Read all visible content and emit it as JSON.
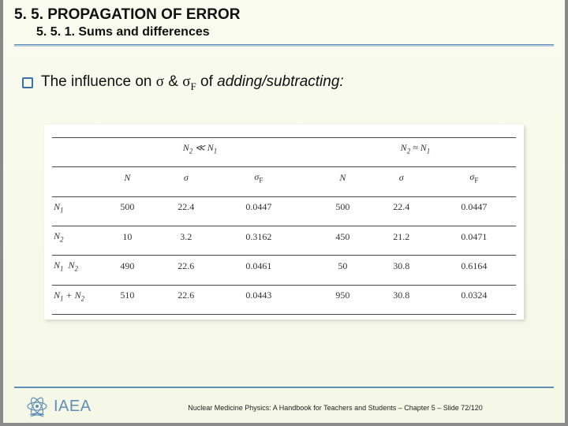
{
  "header": {
    "title1": "5. 5. PROPAGATION OF ERROR",
    "title2": "5. 5. 1. Sums and differences"
  },
  "bullet": {
    "pre": "The influence on ",
    "sigma1": "σ",
    "amp": " & ",
    "sigma2": "σ",
    "sub": "F",
    "post": " of ",
    "ital": "adding/subtracting:"
  },
  "table": {
    "group_left": "N₂ ≪ N₁",
    "group_right": "N₂ ≈ N₁",
    "col_headers_left": [
      "N",
      "σ",
      "σF"
    ],
    "col_headers_right": [
      "N",
      "σ",
      "σF"
    ],
    "rows": [
      {
        "label_html": "N<span class='sub'>1</span>",
        "l": [
          "500",
          "22.4",
          "0.0447"
        ],
        "r": [
          "500",
          "22.4",
          "0.0447"
        ]
      },
      {
        "label_html": "N<span class='sub'>2</span>",
        "l": [
          "10",
          "3.2",
          "0.3162"
        ],
        "r": [
          "450",
          "21.2",
          "0.0471"
        ]
      },
      {
        "label_html": "N<span class='sub'>1</span> &nbsp;N<span class='sub'>2</span>",
        "l": [
          "490",
          "22.6",
          "0.0461"
        ],
        "r": [
          "50",
          "30.8",
          "0.6164"
        ]
      },
      {
        "label_html": "N<span class='sub'>1</span> + N<span class='sub'>2</span>",
        "l": [
          "510",
          "22.6",
          "0.0443"
        ],
        "r": [
          "950",
          "30.8",
          "0.0324"
        ]
      }
    ]
  },
  "footer": {
    "logo_text": "IAEA",
    "caption": "Nuclear Medicine Physics: A Handbook for Teachers and Students – Chapter 5 – Slide 72/120"
  },
  "colors": {
    "accent": "#5f8fb8",
    "bg_top": "#f9fbef",
    "bg_bottom": "#f5f8e6",
    "table_bg": "#ffffff",
    "rule": "#444444"
  }
}
